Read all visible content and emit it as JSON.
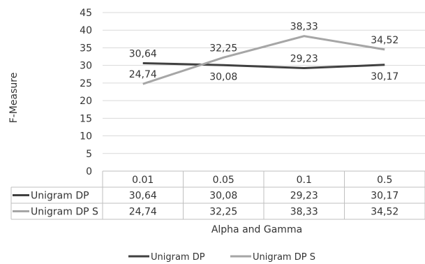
{
  "chart_data": {
    "type": "line",
    "categories": [
      "0.01",
      "0.05",
      "0.1",
      "0.5"
    ],
    "series": [
      {
        "name": "Unigram DP",
        "values": [
          30.64,
          30.08,
          29.23,
          30.17
        ],
        "labels": [
          "30,64",
          "30,08",
          "29,23",
          "30,17"
        ],
        "color": "#404040"
      },
      {
        "name": "Unigram DP S",
        "values": [
          24.74,
          32.25,
          38.33,
          34.52
        ],
        "labels": [
          "24,74",
          "32,25",
          "38,33",
          "34,52"
        ],
        "color": "#a6a6a6"
      }
    ],
    "title": "",
    "xlabel": "Alpha and Gamma",
    "ylabel": "F-Measure",
    "ylim": [
      0,
      45
    ],
    "yticks": [
      "0",
      "5",
      "10",
      "15",
      "20",
      "25",
      "30",
      "35",
      "40",
      "45"
    ],
    "grid": true,
    "legend": "bottom",
    "data_table": true
  }
}
